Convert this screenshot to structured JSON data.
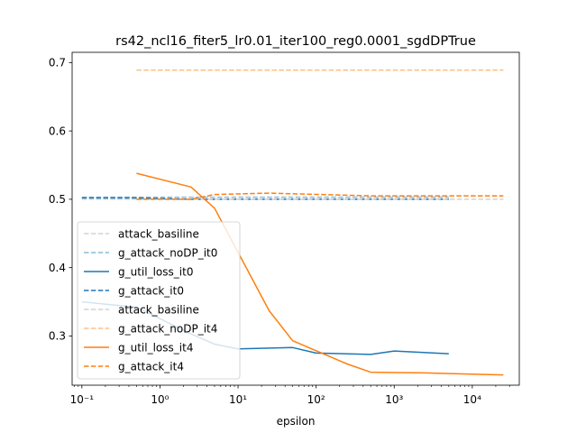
{
  "chart_data": {
    "type": "line",
    "title": "rs42_ncl16_fiter5_lr0.01_iter100_reg0.0001_sgdDPTrue",
    "xlabel": "epsilon",
    "ylabel": "",
    "xscale": "log",
    "xlim": [
      0.075,
      40000
    ],
    "ylim": [
      0.228,
      0.715
    ],
    "x_ticks": [
      0.1,
      1,
      10,
      100,
      1000,
      10000
    ],
    "x_tick_labels": [
      "10⁻¹",
      "10⁰",
      "10¹",
      "10²",
      "10³",
      "10⁴"
    ],
    "y_ticks": [
      0.3,
      0.4,
      0.5,
      0.6,
      0.7
    ],
    "y_tick_labels": [
      "0.3",
      "0.4",
      "0.5",
      "0.6",
      "0.7"
    ],
    "grid": false,
    "legend_position": "lower-left",
    "series": [
      {
        "name": "attack_basiline",
        "color": "#d3d3d3",
        "style": "dashed",
        "x": [
          0.1,
          5000
        ],
        "y": [
          0.5,
          0.5
        ]
      },
      {
        "name": "g_attack_noDP_it0",
        "color": "#8fbbda",
        "style": "dashed",
        "x": [
          0.1,
          5000
        ],
        "y": [
          0.503,
          0.503
        ]
      },
      {
        "name": "g_util_loss_it0",
        "color": "#1f77b4",
        "style": "solid",
        "x": [
          0.1,
          0.5,
          2.5,
          5,
          10,
          50,
          100,
          500,
          1000,
          5000
        ],
        "y": [
          0.35,
          0.342,
          0.303,
          0.288,
          0.281,
          0.283,
          0.275,
          0.273,
          0.278,
          0.274
        ]
      },
      {
        "name": "g_attack_it0",
        "color": "#1f77b4",
        "style": "dashed",
        "x": [
          0.1,
          0.5,
          2.5,
          5,
          10,
          50,
          100,
          500,
          1000,
          5000
        ],
        "y": [
          0.502,
          0.502,
          0.5,
          0.5,
          0.5,
          0.5,
          0.5,
          0.5,
          0.5,
          0.5
        ]
      },
      {
        "name": "attack_basiline",
        "color": "#d3d3d3",
        "style": "dashed",
        "x": [
          0.5,
          25000
        ],
        "y": [
          0.5,
          0.5
        ]
      },
      {
        "name": "g_attack_noDP_it4",
        "color": "#ffbf86",
        "style": "dashed",
        "x": [
          0.5,
          25000
        ],
        "y": [
          0.689,
          0.689
        ]
      },
      {
        "name": "g_util_loss_it4",
        "color": "#ff7f0e",
        "style": "solid",
        "x": [
          0.5,
          2.5,
          5,
          25,
          50,
          250,
          500,
          2500,
          5000,
          25000
        ],
        "y": [
          0.538,
          0.518,
          0.487,
          0.337,
          0.293,
          0.259,
          0.247,
          0.246,
          0.245,
          0.243
        ]
      },
      {
        "name": "g_attack_it4",
        "color": "#ff7f0e",
        "style": "dashed",
        "x": [
          0.5,
          2.5,
          5,
          25,
          50,
          250,
          500,
          2500,
          5000,
          25000
        ],
        "y": [
          0.5,
          0.5,
          0.507,
          0.509,
          0.508,
          0.506,
          0.505,
          0.505,
          0.505,
          0.505
        ]
      }
    ]
  }
}
